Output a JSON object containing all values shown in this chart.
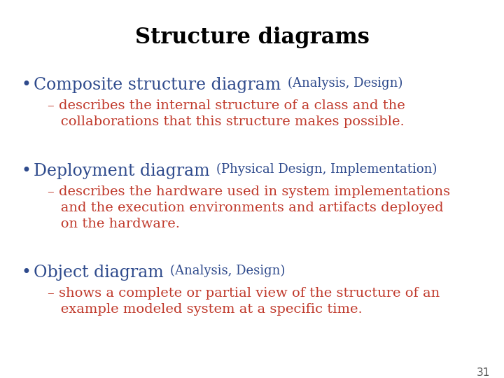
{
  "title": "Structure diagrams",
  "title_color": "#000000",
  "title_fontsize": 22,
  "background_color": "#ffffff",
  "blue_color": "#2E4A8C",
  "red_color": "#C0392B",
  "bullet_fontsize": 17,
  "paren_fontsize": 13,
  "sub_fontsize": 14,
  "page_number": "31",
  "items": [
    {
      "bullet": "Composite structure diagram ",
      "bullet_paren": "(Analysis, Design)",
      "sub_line1": "– describes the internal structure of a class and the",
      "sub_line2": "   collaborations that this structure makes possible.",
      "sub_line3": ""
    },
    {
      "bullet": "Deployment diagram ",
      "bullet_paren": "(Physical Design, Implementation)",
      "sub_line1": "– describes the hardware used in system implementations",
      "sub_line2": "   and the execution environments and artifacts deployed",
      "sub_line3": "   on the hardware."
    },
    {
      "bullet": "Object diagram ",
      "bullet_paren": "(Analysis, Design)",
      "sub_line1": "– shows a complete or partial view of the structure of an",
      "sub_line2": "   example modeled system at a specific time.",
      "sub_line3": ""
    }
  ]
}
